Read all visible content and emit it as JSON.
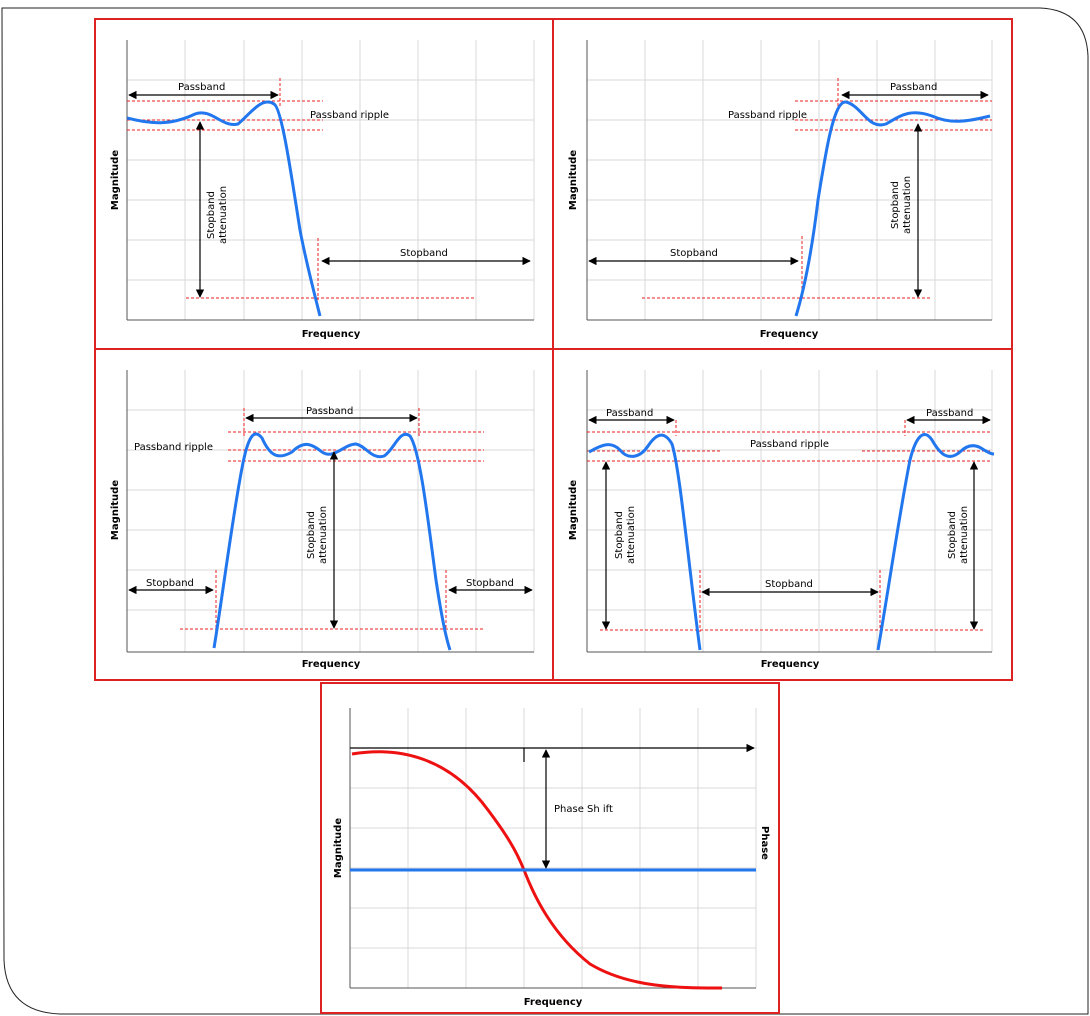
{
  "panels": {
    "lowpass": {
      "xlabel": "Frequency",
      "ylabel": "Magnitude",
      "passband": "Passband",
      "ripple": "Passband ripple",
      "stopband": "Stopband",
      "atten_line1": "Stopband",
      "atten_line2": "attenuation"
    },
    "highpass": {
      "xlabel": "Frequency",
      "ylabel": "Magnitude",
      "passband": "Passband",
      "ripple": "Passband ripple",
      "stopband": "Stopband",
      "atten_line1": "Stopband",
      "atten_line2": "attenuation"
    },
    "bandpass": {
      "xlabel": "Frequency",
      "ylabel": "Magnitude",
      "passband": "Passband",
      "ripple": "Passband ripple",
      "stopband_left": "Stopband",
      "stopband_right": "Stopband",
      "atten_line1": "Stopband",
      "atten_line2": "attenuation"
    },
    "bandstop": {
      "xlabel": "Frequency",
      "ylabel": "Magnitude",
      "passband_left": "Passband",
      "passband_right": "Passband",
      "ripple": "Passband ripple",
      "stopband": "Stopband",
      "atten_left_line1": "Stopband",
      "atten_left_line2": "attenuation",
      "atten_right_line1": "Stopband",
      "atten_right_line2": "attenuation"
    },
    "phase": {
      "xlabel": "Frequency",
      "ylabel_left": "Magnitude",
      "ylabel_right": "Phase",
      "phase_shift": "Phase Sh ift"
    }
  },
  "colors": {
    "frame": "#dd2222",
    "grid": "#d8d8d8",
    "curve": "#2277ee",
    "phase_curve": "#ee1111",
    "guide": "#ee2222",
    "arrow": "#000000"
  }
}
